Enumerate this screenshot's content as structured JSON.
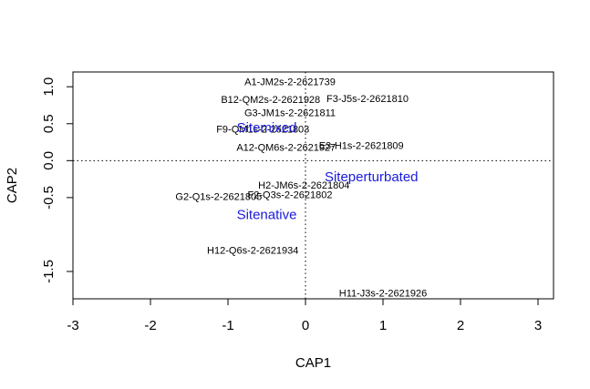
{
  "chart_data": {
    "type": "scatter",
    "xlabel": "CAP1",
    "ylabel": "CAP2",
    "xlim": [
      -3.0,
      3.2
    ],
    "ylim": [
      -1.87,
      1.2
    ],
    "x_ticks": [
      -3,
      -2,
      -1,
      0,
      1,
      2,
      3
    ],
    "y_ticks": [
      -1.5,
      -0.5,
      0.0,
      0.5,
      1.0
    ],
    "x_tick_labels": [
      "-3",
      "-2",
      "-1",
      "0",
      "1",
      "2",
      "3"
    ],
    "y_tick_labels": [
      "-1.5",
      "-0.5",
      "0.0",
      "0.5",
      "1.0"
    ],
    "reference_lines": {
      "x": 0,
      "y": 0,
      "style": "dotted"
    },
    "sites": [
      {
        "label": "A1-JM2s-2-2621739",
        "x": -0.2,
        "y": 1.07
      },
      {
        "label": "B12-QM2s-2-2621928",
        "x": -0.45,
        "y": 0.83
      },
      {
        "label": "F3-J5s-2-2621810",
        "x": 0.8,
        "y": 0.84
      },
      {
        "label": "G3-JM1s-2-2621811",
        "x": -0.2,
        "y": 0.65
      },
      {
        "label": "F9-QM1s-2-2621803",
        "x": -0.55,
        "y": 0.43
      },
      {
        "label": "E3-H1s-2-2621809",
        "x": 0.72,
        "y": 0.21
      },
      {
        "label": "A12-QM6s-2-2621927",
        "x": -0.25,
        "y": 0.18
      },
      {
        "label": "H2-JM6s-2-2621804",
        "x": -0.02,
        "y": -0.33
      },
      {
        "label": "F2-Q3s-2-2621802",
        "x": -0.2,
        "y": -0.46
      },
      {
        "label": "G2-Q1s-2-2621805",
        "x": -1.12,
        "y": -0.48
      },
      {
        "label": "H12-Q6s-2-2621934",
        "x": -0.68,
        "y": -1.21
      },
      {
        "label": "H11-J3s-2-2621926",
        "x": 1.0,
        "y": -1.79
      }
    ],
    "centroids": [
      {
        "label": "Sitemixed",
        "x": -0.5,
        "y": 0.45
      },
      {
        "label": "Siteperturbated",
        "x": 0.85,
        "y": -0.22
      },
      {
        "label": "Sitenative",
        "x": -0.5,
        "y": -0.73
      }
    ],
    "colors": {
      "centroid": "#1a1adb",
      "site": "#000000",
      "axis": "#000000"
    }
  }
}
